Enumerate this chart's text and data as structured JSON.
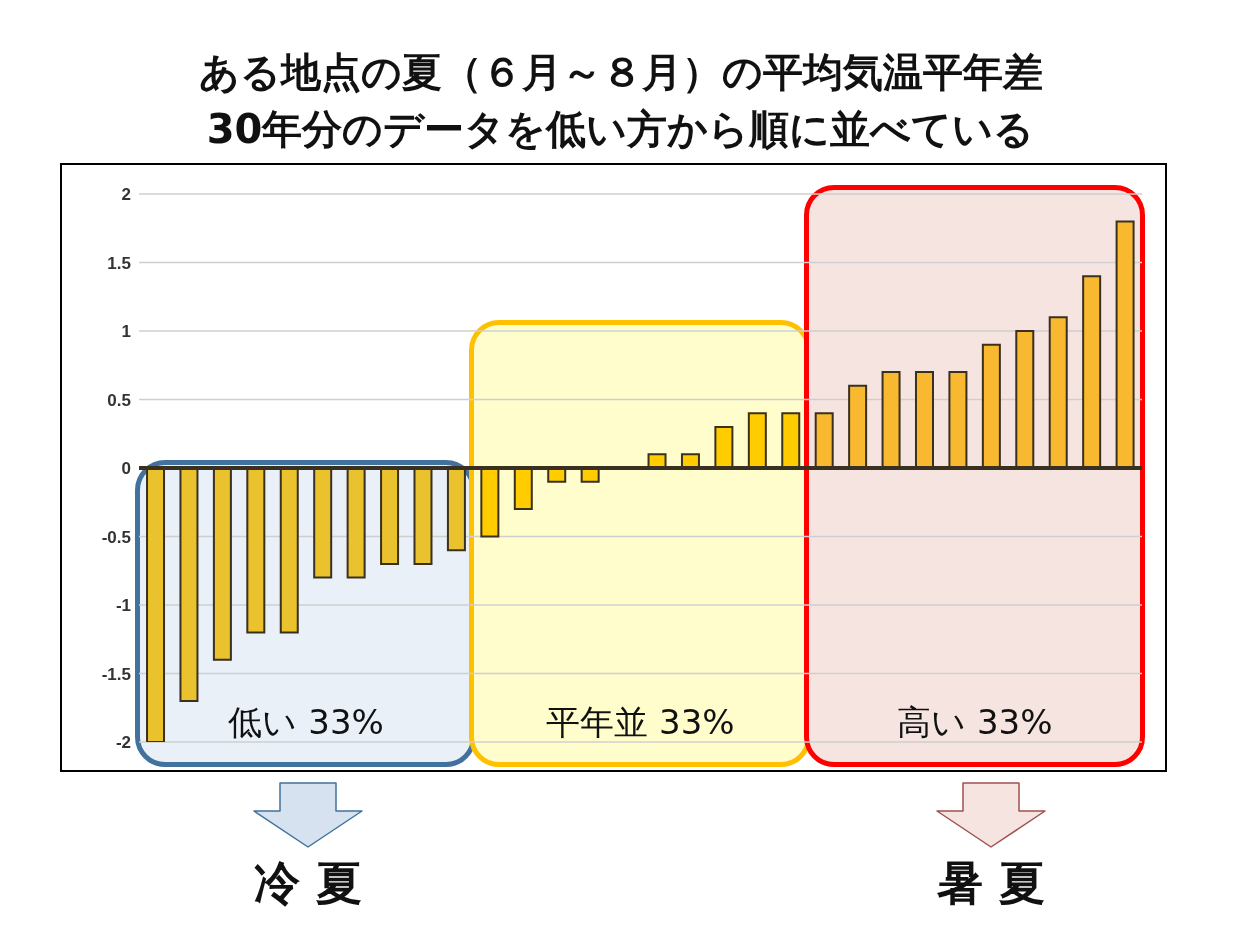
{
  "chart_data": {
    "type": "bar",
    "title": "ある地点の夏（６月～８月）の平均気温平年差",
    "subtitle": "30年分のデータを低い方から順に並べている",
    "categories": [
      null,
      null,
      null,
      null,
      null,
      null,
      null,
      null,
      null,
      null,
      null,
      null,
      null,
      null,
      null,
      null,
      null,
      null,
      null,
      null,
      null,
      null,
      null,
      null,
      null,
      null,
      null,
      null,
      null,
      null
    ],
    "values": [
      -2,
      -1.7,
      -1.4,
      -1.2,
      -1.2,
      -0.8,
      -0.8,
      -0.7,
      -0.7,
      -0.6,
      -0.5,
      -0.3,
      -0.1,
      -0.1,
      0,
      0.1,
      0.1,
      0.3,
      0.4,
      0.4,
      0.4,
      0.6,
      0.7,
      0.7,
      0.7,
      0.9,
      1.0,
      1.1,
      1.4,
      1.8
    ],
    "colors": [
      "#e9c22e",
      "#e9c22e",
      "#e9c22e",
      "#e9c22e",
      "#e9c22e",
      "#e9c22e",
      "#e9c22e",
      "#e9c22e",
      "#e9c22e",
      "#e9c22e",
      "#ffcc00",
      "#ffcc00",
      "#ffcc00",
      "#ffcc00",
      "#ffcc00",
      "#ffcc00",
      "#ffcc00",
      "#ffcc00",
      "#ffcc00",
      "#ffcc00",
      "#f8b931",
      "#f8b931",
      "#f8b931",
      "#f8b931",
      "#f8b931",
      "#f8b931",
      "#f8b931",
      "#f8b931",
      "#f8b931",
      "#f8b931"
    ],
    "ylim": [
      -2,
      2
    ],
    "yticks": [
      -2,
      -1.5,
      -1,
      -0.5,
      0,
      0.5,
      1,
      1.5,
      2
    ],
    "grid": "y",
    "tick_labels": "y",
    "ref_lines": [
      {
        "axis": "y",
        "value": 0,
        "color": "#3a3020"
      }
    ],
    "annotations": [
      "低い 33%",
      "平年並 33%",
      "高い 33%",
      "冷 夏",
      "暑 夏"
    ]
  }
}
